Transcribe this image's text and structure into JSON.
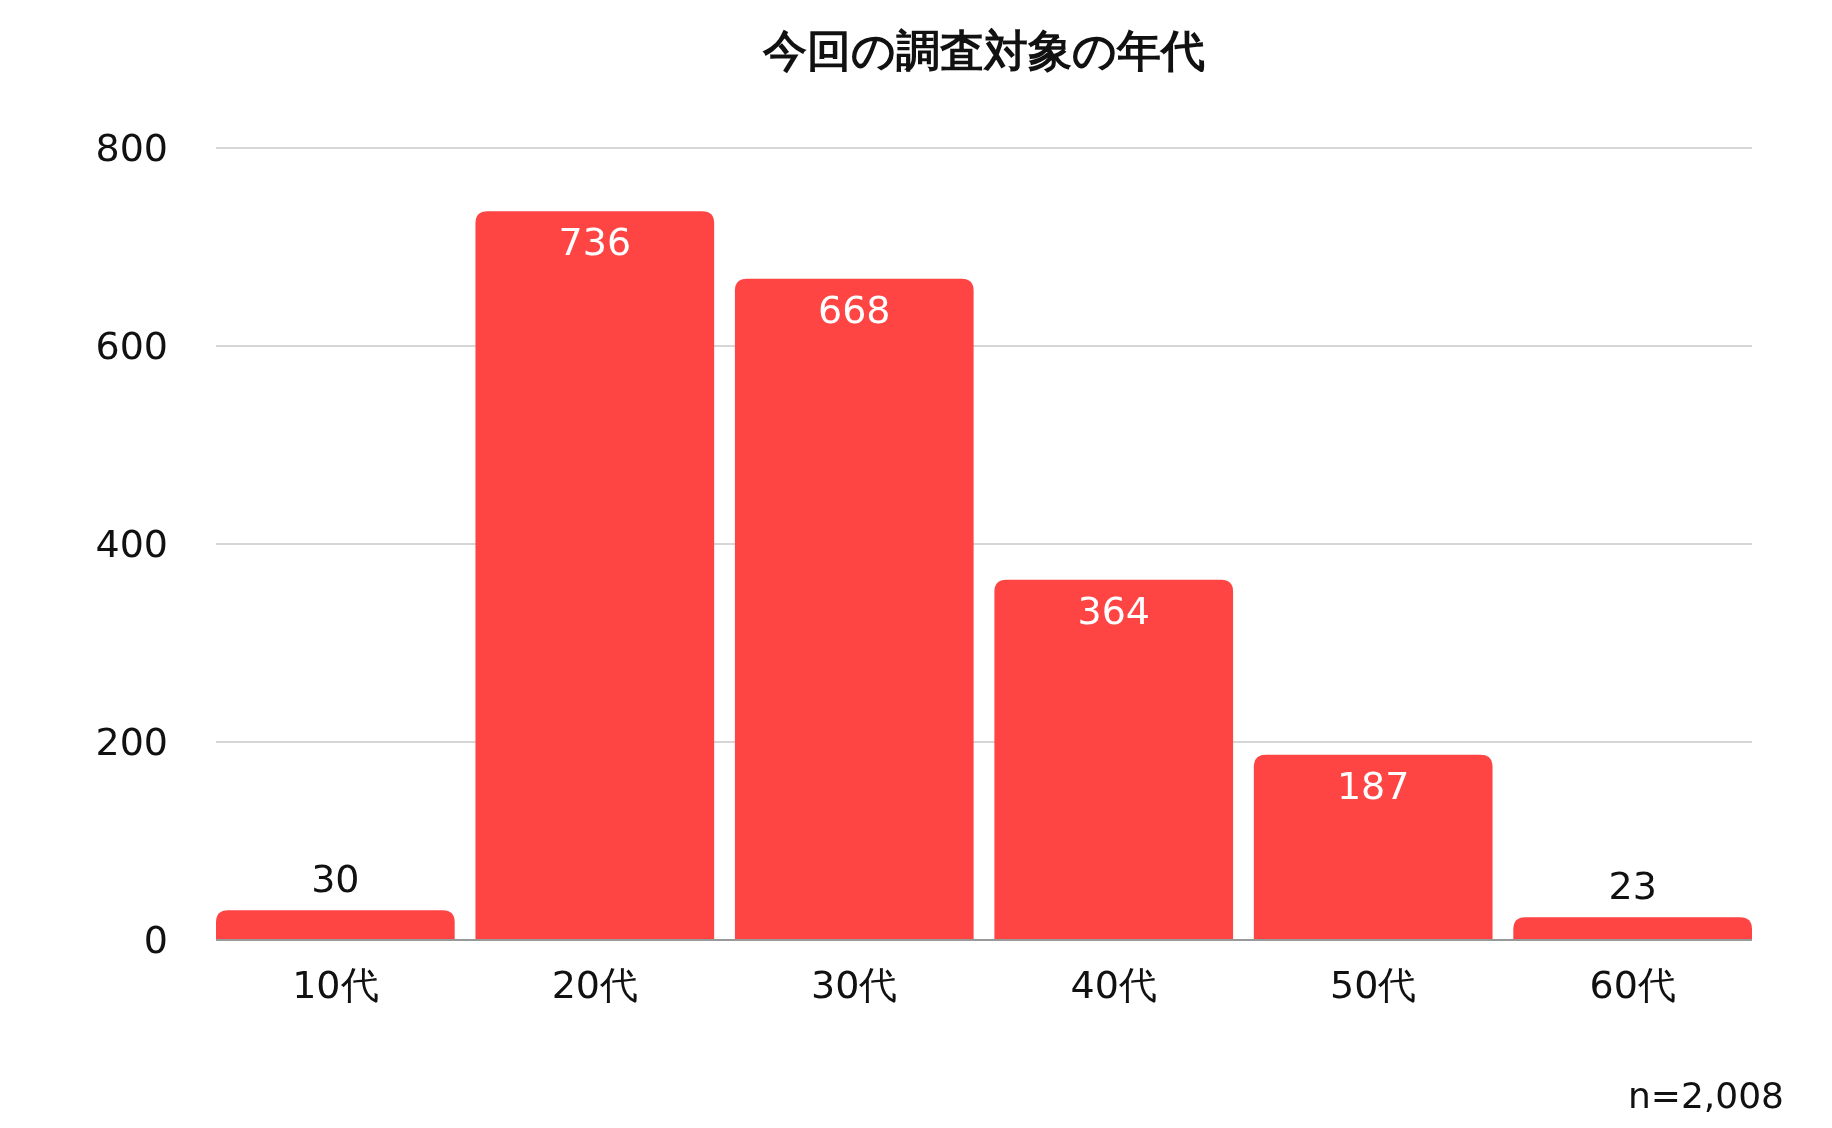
{
  "chart_data": {
    "type": "bar",
    "title": "今回の調査対象の年代",
    "categories": [
      "10代",
      "20代",
      "30代",
      "40代",
      "50代",
      "60代"
    ],
    "values": [
      30,
      736,
      668,
      364,
      187,
      23
    ],
    "color": "#ff4444",
    "ylim": [
      0,
      800
    ],
    "yticks": [
      0,
      200,
      400,
      600,
      800
    ],
    "grid": "y",
    "data_labels": true,
    "annotations": [
      "n=2,008"
    ]
  }
}
